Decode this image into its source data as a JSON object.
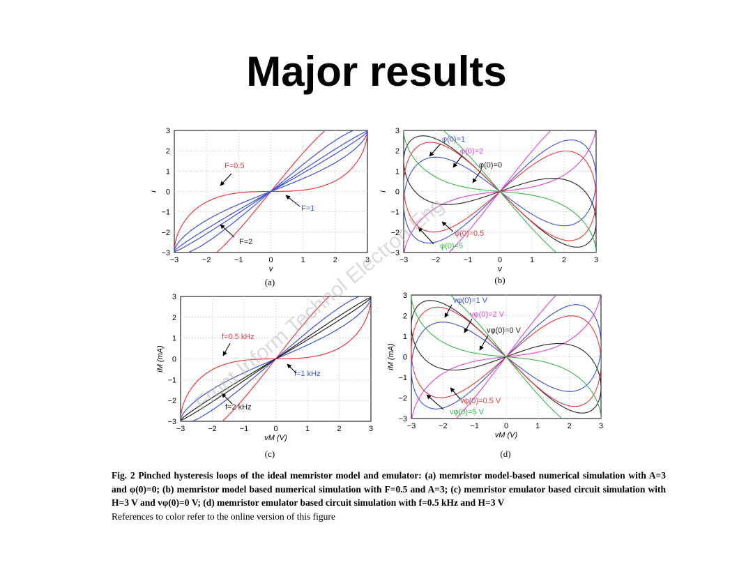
{
  "title": "Major results",
  "watermark": "Front Inform Technol Electron Eng",
  "caption": {
    "text": "Fig. 2  Pinched hysteresis loops of the ideal memristor model and emulator: (a) memristor model-based numerical simulation with A=3 and φ(0)=0; (b) memristor model based numerical simulation with F=0.5 and A=3; (c) memristor emulator based circuit simulation with H=3 V and vφ(0)=0 V; (d) memristor emulator based circuit simulation with f=0.5 kHz and H=3 V",
    "note": "References to color refer to the online version of this figure"
  },
  "colors": {
    "red": "#e8373c",
    "blue": "#3b4fd6",
    "black": "#222222",
    "magenta": "#e040d0",
    "green": "#39b54a"
  },
  "chart_data": [
    {
      "type": "line",
      "panel": "(a)",
      "xlabel": "v",
      "ylabel": "i",
      "xlim": [
        -3,
        3
      ],
      "ylim": [
        -3,
        3
      ],
      "x_ticks": [
        "−3",
        "−2",
        "−1",
        "0",
        "1",
        "2",
        "3"
      ],
      "y_ticks": [
        "−3",
        "−2",
        "−1",
        "0",
        "1",
        "2",
        "3"
      ],
      "grid": true,
      "series": [
        {
          "name": "F=0.5",
          "color": "red",
          "loop_amplitude": 1.45
        },
        {
          "name": "F=1",
          "color": "blue",
          "loop_amplitude": 0.55
        },
        {
          "name": "F=2",
          "color": "blue",
          "loop_amplitude": 0.12
        }
      ],
      "annotations": [
        "F=0.5",
        "F=1",
        "F=2"
      ]
    },
    {
      "type": "line",
      "panel": "(b)",
      "xlabel": "v",
      "ylabel": "i",
      "xlim": [
        -3,
        3
      ],
      "ylim": [
        -3,
        3
      ],
      "x_ticks": [
        "−3",
        "−2",
        "−1",
        "0",
        "1",
        "2",
        "3"
      ],
      "y_ticks": [
        "−3",
        "−2",
        "−1",
        "0",
        "1",
        "2",
        "3"
      ],
      "grid": true,
      "series": [
        {
          "name": "φ(0)=1",
          "color": "blue"
        },
        {
          "name": "φ(0)=2",
          "color": "magenta"
        },
        {
          "name": "φ(0)=0",
          "color": "black"
        },
        {
          "name": "φ(0)=0.5",
          "color": "red"
        },
        {
          "name": "φ(0)=5",
          "color": "green"
        }
      ],
      "annotations": [
        "φ(0)=1",
        "φ(0)=2",
        "φ(0)=0",
        "φ(0)=0.5",
        "φ(0)=5"
      ]
    },
    {
      "type": "line",
      "panel": "(c)",
      "xlabel": "vM (V)",
      "ylabel": "iM (mA)",
      "xlim": [
        -3,
        3
      ],
      "ylim": [
        -3,
        3
      ],
      "x_ticks": [
        "−3",
        "−2",
        "−1",
        "0",
        "1",
        "2",
        "3"
      ],
      "y_ticks": [
        "−3",
        "−2",
        "−1",
        "0",
        "1",
        "2",
        "3"
      ],
      "grid": true,
      "series": [
        {
          "name": "f=0.5 kHz",
          "color": "red",
          "loop_amplitude": 1.45
        },
        {
          "name": "f=1 kHz",
          "color": "blue",
          "loop_amplitude": 0.5
        },
        {
          "name": "f=2 kHz",
          "color": "black",
          "loop_amplitude": 0.1
        }
      ],
      "annotations": [
        "f=0.5 kHz",
        "f=1 kHz",
        "f=2 kHz"
      ]
    },
    {
      "type": "line",
      "panel": "(d)",
      "xlabel": "vM (V)",
      "ylabel": "iM (mA)",
      "xlim": [
        -3,
        3
      ],
      "ylim": [
        -3,
        3
      ],
      "x_ticks": [
        "−3",
        "−2",
        "−1",
        "0",
        "1",
        "2",
        "3"
      ],
      "y_ticks": [
        "−3",
        "−2",
        "−1",
        "0",
        "1",
        "2",
        "3"
      ],
      "grid": true,
      "series": [
        {
          "name": "vφ(0)=1 V",
          "color": "blue"
        },
        {
          "name": "vφ(0)=2 V",
          "color": "magenta"
        },
        {
          "name": "vφ(0)=0 V",
          "color": "black"
        },
        {
          "name": "vφ(0)=0.5 V",
          "color": "red"
        },
        {
          "name": "vφ(0)=5 V",
          "color": "green"
        }
      ],
      "annotations": [
        "vφ(0)=1 V",
        "vφ(0)=2 V",
        "vφ(0)=0 V",
        "vφ(0)=0.5 V",
        "vφ(0)=5 V"
      ]
    }
  ]
}
